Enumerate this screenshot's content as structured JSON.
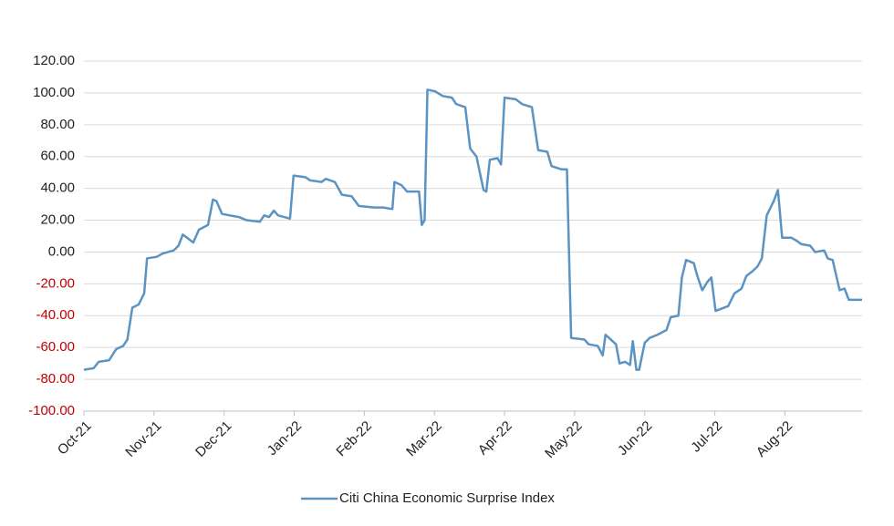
{
  "chart_data": {
    "type": "line",
    "x": [
      0,
      0.14,
      0.21,
      0.36,
      0.46,
      0.56,
      0.62,
      0.69,
      0.78,
      0.86,
      0.9,
      1.04,
      1.12,
      1.28,
      1.35,
      1.41,
      1.56,
      1.64,
      1.77,
      1.84,
      1.89,
      1.97,
      2.08,
      2.21,
      2.32,
      2.51,
      2.57,
      2.64,
      2.71,
      2.77,
      2.94,
      2.99,
      3.16,
      3.23,
      3.39,
      3.45,
      3.58,
      3.68,
      3.82,
      3.92,
      4.14,
      4.27,
      4.4,
      4.43,
      4.53,
      4.61,
      4.78,
      4.82,
      4.86,
      4.9,
      5.01,
      5.12,
      5.25,
      5.31,
      5.44,
      5.51,
      5.6,
      5.7,
      5.74,
      5.79,
      5.9,
      5.95,
      6.0,
      6.16,
      6.25,
      6.39,
      6.48,
      6.61,
      6.67,
      6.81,
      6.89,
      6.95,
      7.14,
      7.2,
      7.33,
      7.4,
      7.44,
      7.59,
      7.64,
      7.72,
      7.79,
      7.83,
      7.88,
      7.92,
      8.0,
      8.07,
      8.18,
      8.31,
      8.37,
      8.48,
      8.53,
      8.59,
      8.7,
      8.75,
      8.82,
      8.89,
      8.95,
      9.01,
      9.13,
      9.19,
      9.28,
      9.38,
      9.45,
      9.54,
      9.61,
      9.67,
      9.74,
      9.84,
      9.9,
      9.96,
      10.09,
      10.17,
      10.23,
      10.36,
      10.43,
      10.56,
      10.61,
      10.68,
      10.78,
      10.85,
      10.91,
      11.1
    ],
    "series": [
      {
        "name": "Citi China Economic Surprise Index",
        "color": "#5b93c3",
        "values": [
          -74,
          -73,
          -69,
          -68,
          -61,
          -59,
          -55,
          -35,
          -33,
          -26,
          -4,
          -3,
          -1,
          1,
          4,
          11,
          6,
          14,
          17,
          33,
          32,
          24,
          23,
          22,
          20,
          19,
          23,
          22,
          26,
          23,
          21,
          48,
          47,
          45,
          44,
          46,
          44,
          36,
          35,
          29,
          28,
          28,
          27,
          44,
          42,
          38,
          38,
          17,
          20,
          102,
          101,
          98,
          97,
          93,
          91,
          65,
          60,
          39,
          38,
          58,
          59,
          55,
          97,
          96,
          93,
          91,
          64,
          63,
          54,
          52,
          52,
          -54,
          -55,
          -58,
          -59,
          -65,
          -52,
          -58,
          -70,
          -69,
          -71,
          -56,
          -74,
          -74,
          -57,
          -54,
          -52,
          -49,
          -41,
          -40,
          -16,
          -5,
          -7,
          -15,
          -24,
          -19,
          -16,
          -37,
          -35,
          -34,
          -26,
          -23,
          -15,
          -12,
          -9,
          -4,
          23,
          32,
          39,
          9,
          9,
          7,
          5,
          4,
          0,
          1,
          -4,
          -5,
          -24,
          -23,
          -30,
          -30
        ]
      }
    ],
    "xlim": [
      0,
      11.1
    ],
    "xticks": [
      {
        "value": 0,
        "label": "Oct-21"
      },
      {
        "value": 1,
        "label": "Nov-21"
      },
      {
        "value": 2,
        "label": "Dec-21"
      },
      {
        "value": 3,
        "label": "Jan-22"
      },
      {
        "value": 4,
        "label": "Feb-22"
      },
      {
        "value": 5,
        "label": "Mar-22"
      },
      {
        "value": 6,
        "label": "Apr-22"
      },
      {
        "value": 7,
        "label": "May-22"
      },
      {
        "value": 8,
        "label": "Jun-22"
      },
      {
        "value": 9,
        "label": "Jul-22"
      },
      {
        "value": 10,
        "label": "Aug-22"
      }
    ],
    "ylim": [
      -100,
      120
    ],
    "yticks": [
      {
        "value": -100,
        "label": "-100.00"
      },
      {
        "value": -80,
        "label": "-80.00"
      },
      {
        "value": -60,
        "label": "-60.00"
      },
      {
        "value": -40,
        "label": "-40.00"
      },
      {
        "value": -20,
        "label": "-20.00"
      },
      {
        "value": 0,
        "label": "0.00"
      },
      {
        "value": 20,
        "label": "20.00"
      },
      {
        "value": 40,
        "label": "40.00"
      },
      {
        "value": 60,
        "label": "60.00"
      },
      {
        "value": 80,
        "label": "80.00"
      },
      {
        "value": 100,
        "label": "100.00"
      },
      {
        "value": 120,
        "label": "120.00"
      }
    ],
    "grid": true,
    "negative_tick_color": "#c00000",
    "legend": "bottom"
  }
}
